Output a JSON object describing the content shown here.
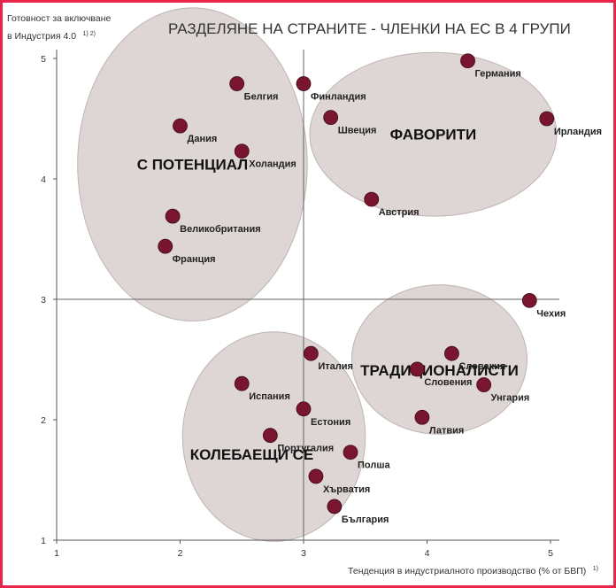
{
  "chart_data": {
    "type": "scatter",
    "title": "РАЗДЕЛЯНЕ НА СТРАНИТЕ - ЧЛЕНКИ НА ЕС В 4 ГРУПИ",
    "ylabel_line1": "Готовност за включване",
    "ylabel_line2": "в Индустрия 4.0",
    "ylabel_sup": "1) 2)",
    "xlabel": "Тенденция в индустриалното производство (% от БВП)",
    "xlabel_sup": "1)",
    "xlim": [
      1,
      5
    ],
    "ylim": [
      1,
      5.2
    ],
    "x_ticks": [
      "1",
      "2",
      "3",
      "4",
      "5"
    ],
    "y_ticks": [
      "1",
      "2",
      "3",
      "4",
      "5"
    ],
    "quadrant_lines": {
      "x": 3,
      "y": 3
    },
    "marker_color": "#7a1530",
    "group_fill": "#ddd6d4",
    "groups": [
      {
        "name": "С ПОТЕНЦИАЛ",
        "cx": 2.1,
        "cy": 4.12,
        "rx": 0.93,
        "ry": 1.3
      },
      {
        "name": "ФАВОРИТИ",
        "cx": 4.05,
        "cy": 4.37,
        "rx": 1.0,
        "ry": 0.68
      },
      {
        "name": "ТРАДИЦИОНАЛИСТИ",
        "cx": 4.1,
        "cy": 2.5,
        "rx": 0.71,
        "ry": 0.62
      },
      {
        "name": "КОЛЕБАЕЩИ СЕ",
        "cx": 2.76,
        "cy": 1.86,
        "rx": 0.74,
        "ry": 0.87
      }
    ],
    "points": [
      {
        "name": "Белгия",
        "x": 2.46,
        "y": 4.79
      },
      {
        "name": "Финландия",
        "x": 3.0,
        "y": 4.79
      },
      {
        "name": "Германия",
        "x": 4.33,
        "y": 4.98
      },
      {
        "name": "Швеция",
        "x": 3.22,
        "y": 4.51
      },
      {
        "name": "Ирландия",
        "x": 4.97,
        "y": 4.5
      },
      {
        "name": "Дания",
        "x": 2.0,
        "y": 4.44
      },
      {
        "name": "Холандия",
        "x": 2.5,
        "y": 4.23
      },
      {
        "name": "Австрия",
        "x": 3.55,
        "y": 3.83
      },
      {
        "name": "Великобритания",
        "x": 1.94,
        "y": 3.69
      },
      {
        "name": "Франция",
        "x": 1.88,
        "y": 3.44
      },
      {
        "name": "Чехия",
        "x": 4.83,
        "y": 2.99
      },
      {
        "name": "Италия",
        "x": 3.06,
        "y": 2.55
      },
      {
        "name": "Словакия",
        "x": 4.2,
        "y": 2.55
      },
      {
        "name": "Словения",
        "x": 3.92,
        "y": 2.42
      },
      {
        "name": "Испания",
        "x": 2.5,
        "y": 2.3
      },
      {
        "name": "Унгария",
        "x": 4.46,
        "y": 2.29
      },
      {
        "name": "Естония",
        "x": 3.0,
        "y": 2.09
      },
      {
        "name": "Латвия",
        "x": 3.96,
        "y": 2.02
      },
      {
        "name": "Португалия",
        "x": 2.73,
        "y": 1.87
      },
      {
        "name": "Полша",
        "x": 3.38,
        "y": 1.73
      },
      {
        "name": "Хърватия",
        "x": 3.1,
        "y": 1.53
      },
      {
        "name": "България",
        "x": 3.25,
        "y": 1.28
      }
    ]
  }
}
